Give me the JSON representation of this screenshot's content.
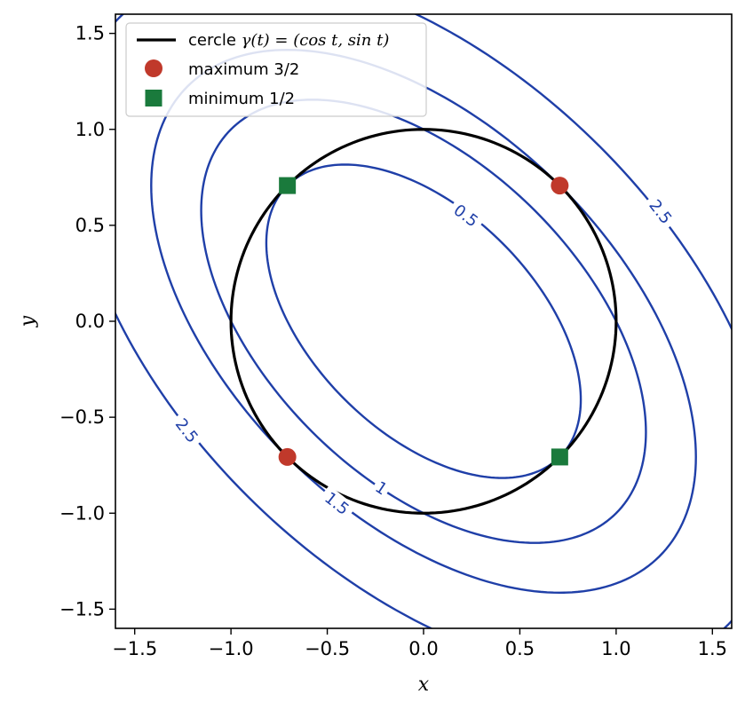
{
  "chart_data": {
    "type": "contour",
    "function": "x^2 + x*y + y^2",
    "xlabel": "x",
    "ylabel": "y",
    "xlim": [
      -1.6,
      1.6
    ],
    "ylim": [
      -1.6,
      1.6
    ],
    "xticks": [
      "−1.5",
      "−1.0",
      "−0.5",
      "0.0",
      "0.5",
      "1.0",
      "1.5"
    ],
    "yticks": [
      "−1.5",
      "−1.0",
      "−0.5",
      "0.0",
      "0.5",
      "1.0",
      "1.5"
    ],
    "xtick_values": [
      -1.5,
      -1.0,
      -0.5,
      0.0,
      0.5,
      1.0,
      1.5
    ],
    "ytick_values": [
      -1.5,
      -1.0,
      -0.5,
      0.0,
      0.5,
      1.0,
      1.5
    ],
    "grid": false,
    "legend_position": "top-left",
    "contour_levels": [
      0.5,
      1,
      1.5,
      2.5
    ],
    "contour_labels": [
      {
        "text": "0.5",
        "x": 0.22,
        "y": 0.55
      },
      {
        "text": "1",
        "x": -0.22,
        "y": -0.87
      },
      {
        "text": "1.5",
        "x": -0.45,
        "y": -0.95
      },
      {
        "text": "2.5",
        "x": 1.23,
        "y": 0.57
      },
      {
        "text": "2.5",
        "x": -1.23,
        "y": -0.57
      }
    ],
    "circle": {
      "name": "cercle γ(t) = (cos t, sin t)",
      "radius": 1
    },
    "series": [
      {
        "name": "maximum 3/2",
        "marker": "circle",
        "points": [
          [
            0.7071,
            0.7071
          ],
          [
            -0.7071,
            -0.7071
          ]
        ]
      },
      {
        "name": "minimum 1/2",
        "marker": "square",
        "points": [
          [
            -0.7071,
            0.7071
          ],
          [
            0.7071,
            -0.7071
          ]
        ]
      }
    ],
    "colors": {
      "contour": "#1f3fa8",
      "circle": "#000000",
      "maximum": "#c0392b",
      "minimum": "#1a7a3c"
    }
  },
  "legend": {
    "circle_text": "cercle ",
    "circle_math": "γ(t) = (cos t, sin t)",
    "maximum_label": "maximum 3/2",
    "minimum_label": "minimum 1/2"
  }
}
